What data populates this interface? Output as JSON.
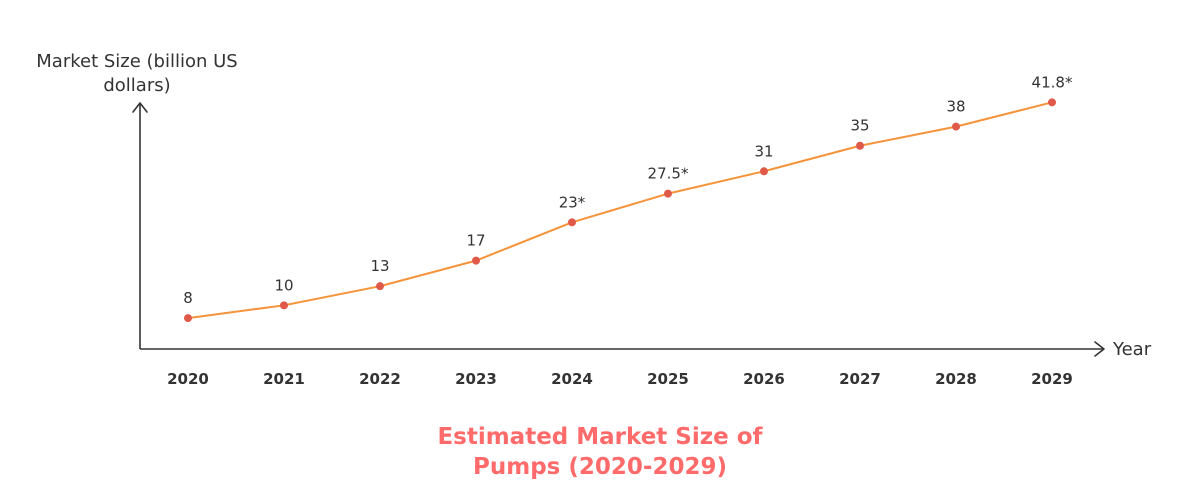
{
  "chart_data": {
    "type": "line",
    "title_lines": [
      "Estimated Market Size of",
      "Pumps (2020-2029)"
    ],
    "ylabel_lines": [
      "Market Size (billion US",
      "dollars)"
    ],
    "xlabel": "Year",
    "categories": [
      "2020",
      "2021",
      "2022",
      "2023",
      "2024",
      "2025",
      "2026",
      "2027",
      "2028",
      "2029"
    ],
    "values": [
      8,
      10,
      13,
      17,
      23,
      27.5,
      31,
      35,
      38,
      41.8
    ],
    "value_labels": [
      "8",
      "10",
      "13",
      "17",
      "23*",
      "27.5*",
      "31",
      "35",
      "38",
      "41.8*"
    ],
    "ylim": [
      3,
      50
    ],
    "grid": false,
    "colors": {
      "line": "#f5933a",
      "marker": "#e05a4a",
      "axis": "#333333",
      "title": "#ff6b6b"
    }
  }
}
